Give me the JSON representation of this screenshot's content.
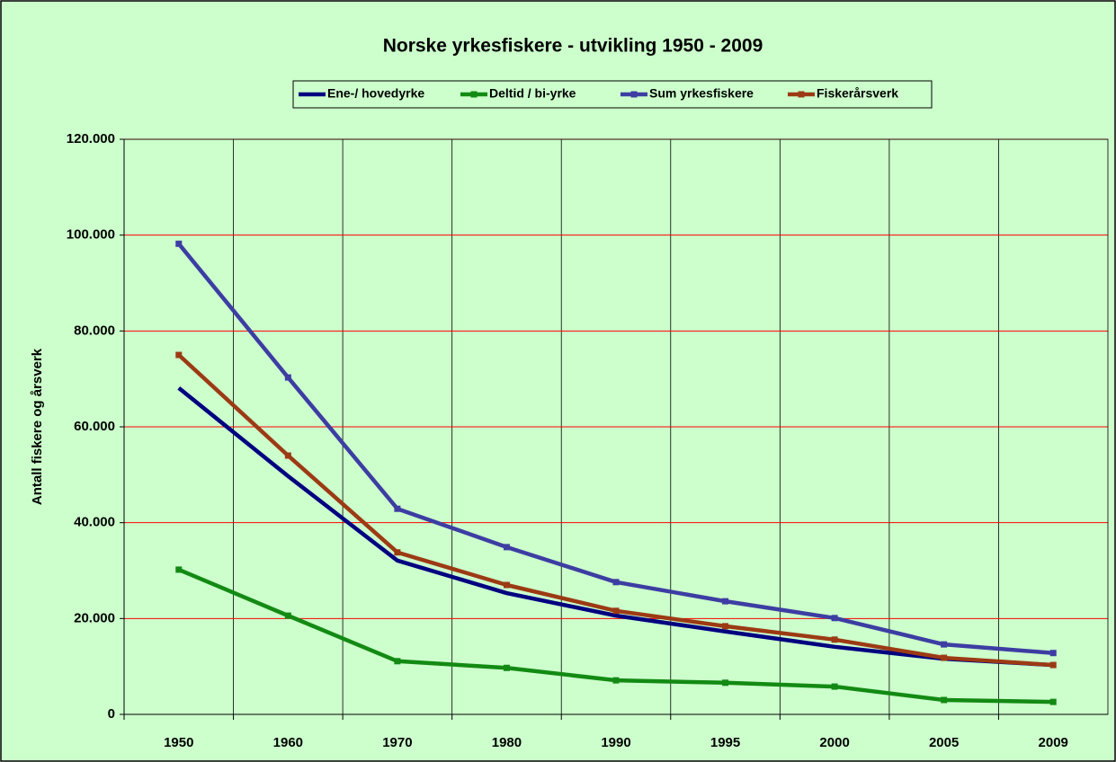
{
  "chart_data": {
    "type": "line",
    "title": "Norske yrkesfiskere - utvikling 1950 - 2009",
    "y_label": "Antall fiskere og årsverk",
    "categories": [
      "1950",
      "1960",
      "1970",
      "1980",
      "1990",
      "1995",
      "2000",
      "2005",
      "2009"
    ],
    "series": [
      {
        "name": "Ene-/ hovedyrke",
        "color": "#000080",
        "marker": false,
        "values": [
          68100,
          49700,
          32100,
          25300,
          20600,
          17300,
          14100,
          11600,
          10300
        ]
      },
      {
        "name": "Deltid / bi-yrke",
        "color": "#138a13",
        "marker": true,
        "values": [
          30200,
          20600,
          11100,
          9700,
          7100,
          6600,
          5800,
          3000,
          2600
        ]
      },
      {
        "name": "Sum yrkesfiskere",
        "color": "#3d3da3",
        "marker": true,
        "values": [
          98200,
          70300,
          42900,
          34900,
          27600,
          23600,
          20100,
          14600,
          12800
        ]
      },
      {
        "name": "Fiskerårsverk",
        "color": "#9c3a14",
        "marker": true,
        "values": [
          75000,
          54000,
          33800,
          27000,
          21600,
          18400,
          15600,
          11800,
          10300
        ]
      }
    ],
    "ylim": [
      0,
      120000
    ],
    "yticks": [
      0,
      {
        "value": 20000,
        "label": "20.000"
      },
      {
        "value": 40000,
        "label": "40.000"
      },
      {
        "value": 60000,
        "label": "60.000"
      },
      {
        "value": 80000,
        "label": "80.000"
      },
      {
        "value": 100000,
        "label": "100.000"
      },
      {
        "value": 120000,
        "label": "120.000"
      }
    ],
    "grid": true,
    "grid_color": "#ff0000",
    "legend": "top"
  }
}
